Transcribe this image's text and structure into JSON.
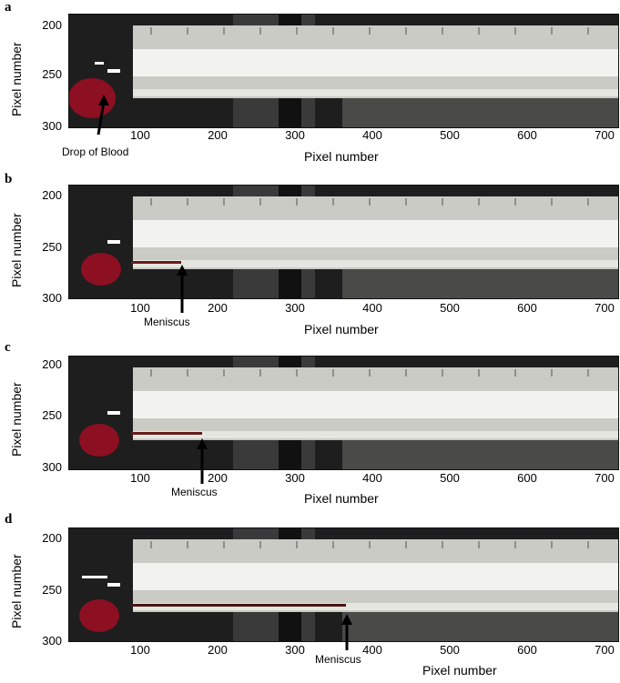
{
  "panels": [
    {
      "label": "a",
      "y_axis_label": "Pixel number",
      "x_axis_label": "Pixel number",
      "y_ticks": [
        "200",
        "250",
        "300"
      ],
      "x_ticks": [
        "100",
        "200",
        "300",
        "400",
        "500",
        "600",
        "700"
      ],
      "annotation": "Drop of Blood"
    },
    {
      "label": "b",
      "y_axis_label": "Pixel number",
      "x_axis_label": "Pixel number",
      "y_ticks": [
        "200",
        "250",
        "300"
      ],
      "x_ticks": [
        "100",
        "200",
        "300",
        "400",
        "500",
        "600",
        "700"
      ],
      "annotation": "Meniscus"
    },
    {
      "label": "c",
      "y_axis_label": "Pixel number",
      "x_axis_label": "Pixel number",
      "y_ticks": [
        "200",
        "250",
        "300"
      ],
      "x_ticks": [
        "100",
        "200",
        "300",
        "400",
        "500",
        "600",
        "700"
      ],
      "annotation": "Meniscus"
    },
    {
      "label": "d",
      "y_axis_label": "Pixel number",
      "x_axis_label": "Pixel number",
      "y_ticks": [
        "200",
        "250",
        "300"
      ],
      "x_ticks": [
        "100",
        "200",
        "300",
        "400",
        "500",
        "600",
        "700"
      ],
      "annotation": "Meniscus"
    }
  ],
  "colors": {
    "background_dark": "#1e1e1e",
    "ruler": "#c9cbc4",
    "capillary_white": "#f2f2f0",
    "blood_red": "#8c0f22",
    "blood_column": "#6a1a1a"
  }
}
